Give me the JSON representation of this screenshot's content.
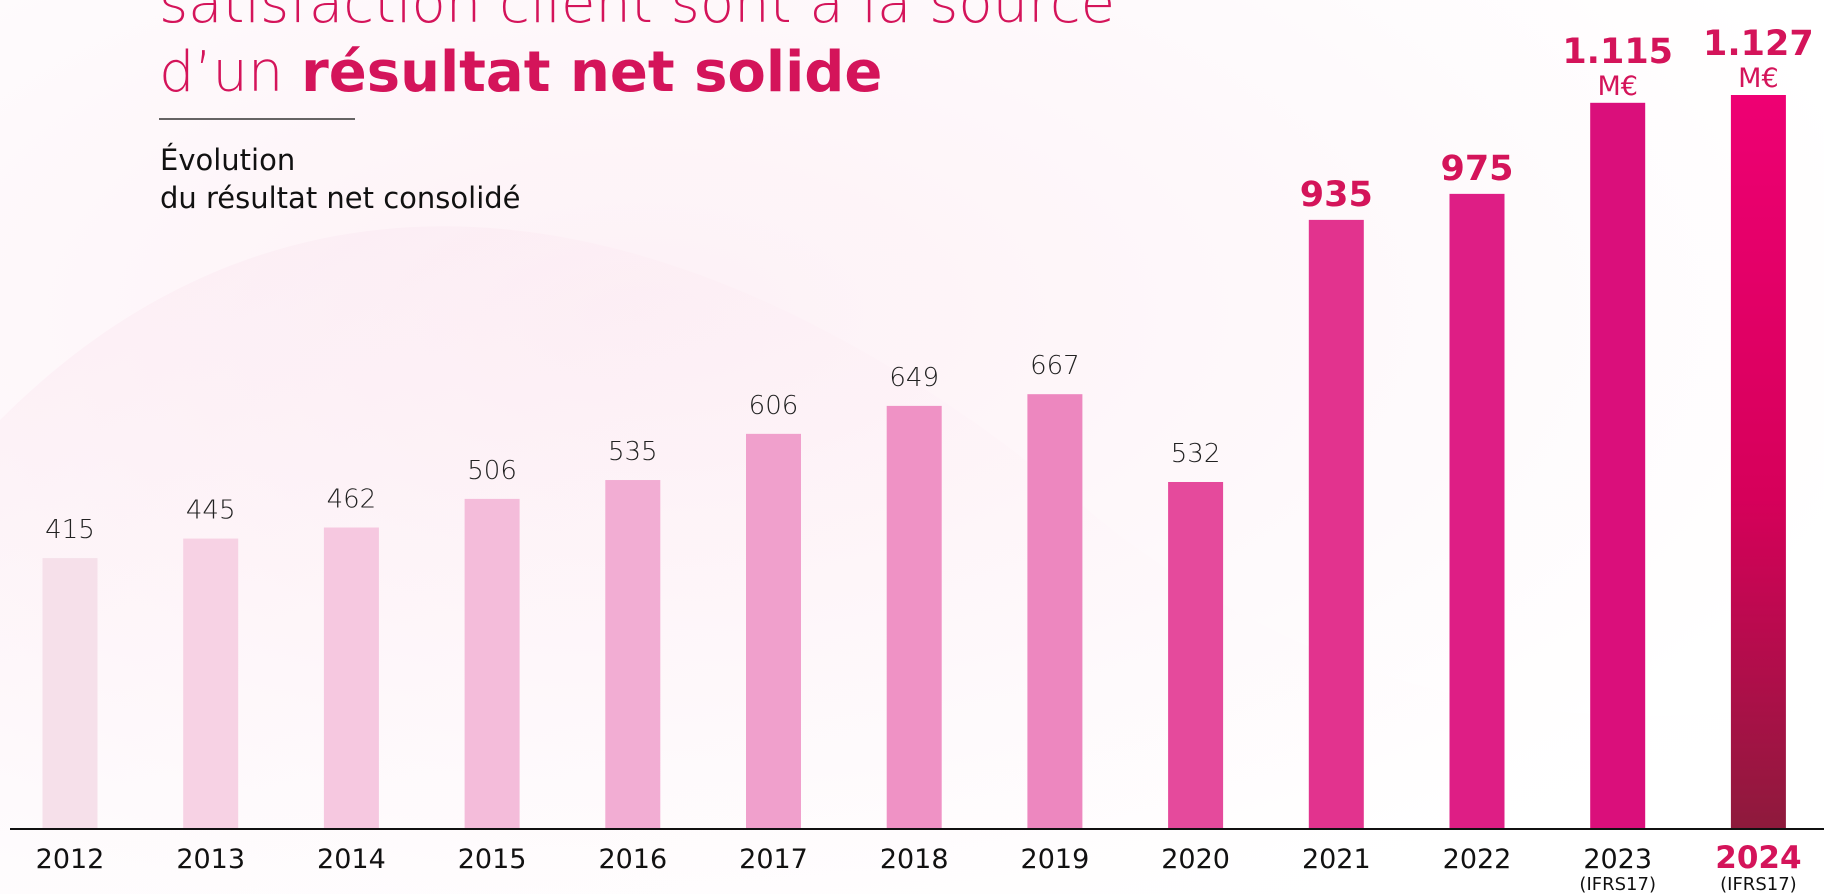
{
  "chart_data": {
    "type": "bar",
    "title_line1": "satisfaction client sont à la source",
    "title_line2_prefix": "d’un",
    "title_line2_bold": "résultat net solide",
    "subtitle_line1": "Évolution",
    "subtitle_line2": "du résultat net consolidé",
    "categories": [
      "2012",
      "2013",
      "2014",
      "2015",
      "2016",
      "2017",
      "2018",
      "2019",
      "2020",
      "2021",
      "2022",
      "2023",
      "2024"
    ],
    "category_notes": [
      null,
      null,
      null,
      null,
      null,
      null,
      null,
      null,
      null,
      null,
      null,
      "(IFRS17)",
      "(IFRS17)"
    ],
    "values": [
      415,
      445,
      462,
      506,
      535,
      606,
      649,
      667,
      532,
      935,
      975,
      1115,
      1127
    ],
    "value_labels": [
      "415",
      "445",
      "462",
      "506",
      "535",
      "606",
      "649",
      "667",
      "532",
      "935",
      "975",
      "1.115",
      "1.127"
    ],
    "unit_labels": [
      null,
      null,
      null,
      null,
      null,
      null,
      null,
      null,
      null,
      null,
      null,
      "M€",
      "M€"
    ],
    "colors": [
      "#f6e0ea",
      "#f7d2e4",
      "#f6c8e0",
      "#f4bcda",
      "#f2add3",
      "#f0a0cc",
      "#ef92c5",
      "#ed87bf",
      "#e54a9c",
      "#e2338e",
      "#de1e85",
      "#da0f7b",
      "#e8006f"
    ]
  }
}
